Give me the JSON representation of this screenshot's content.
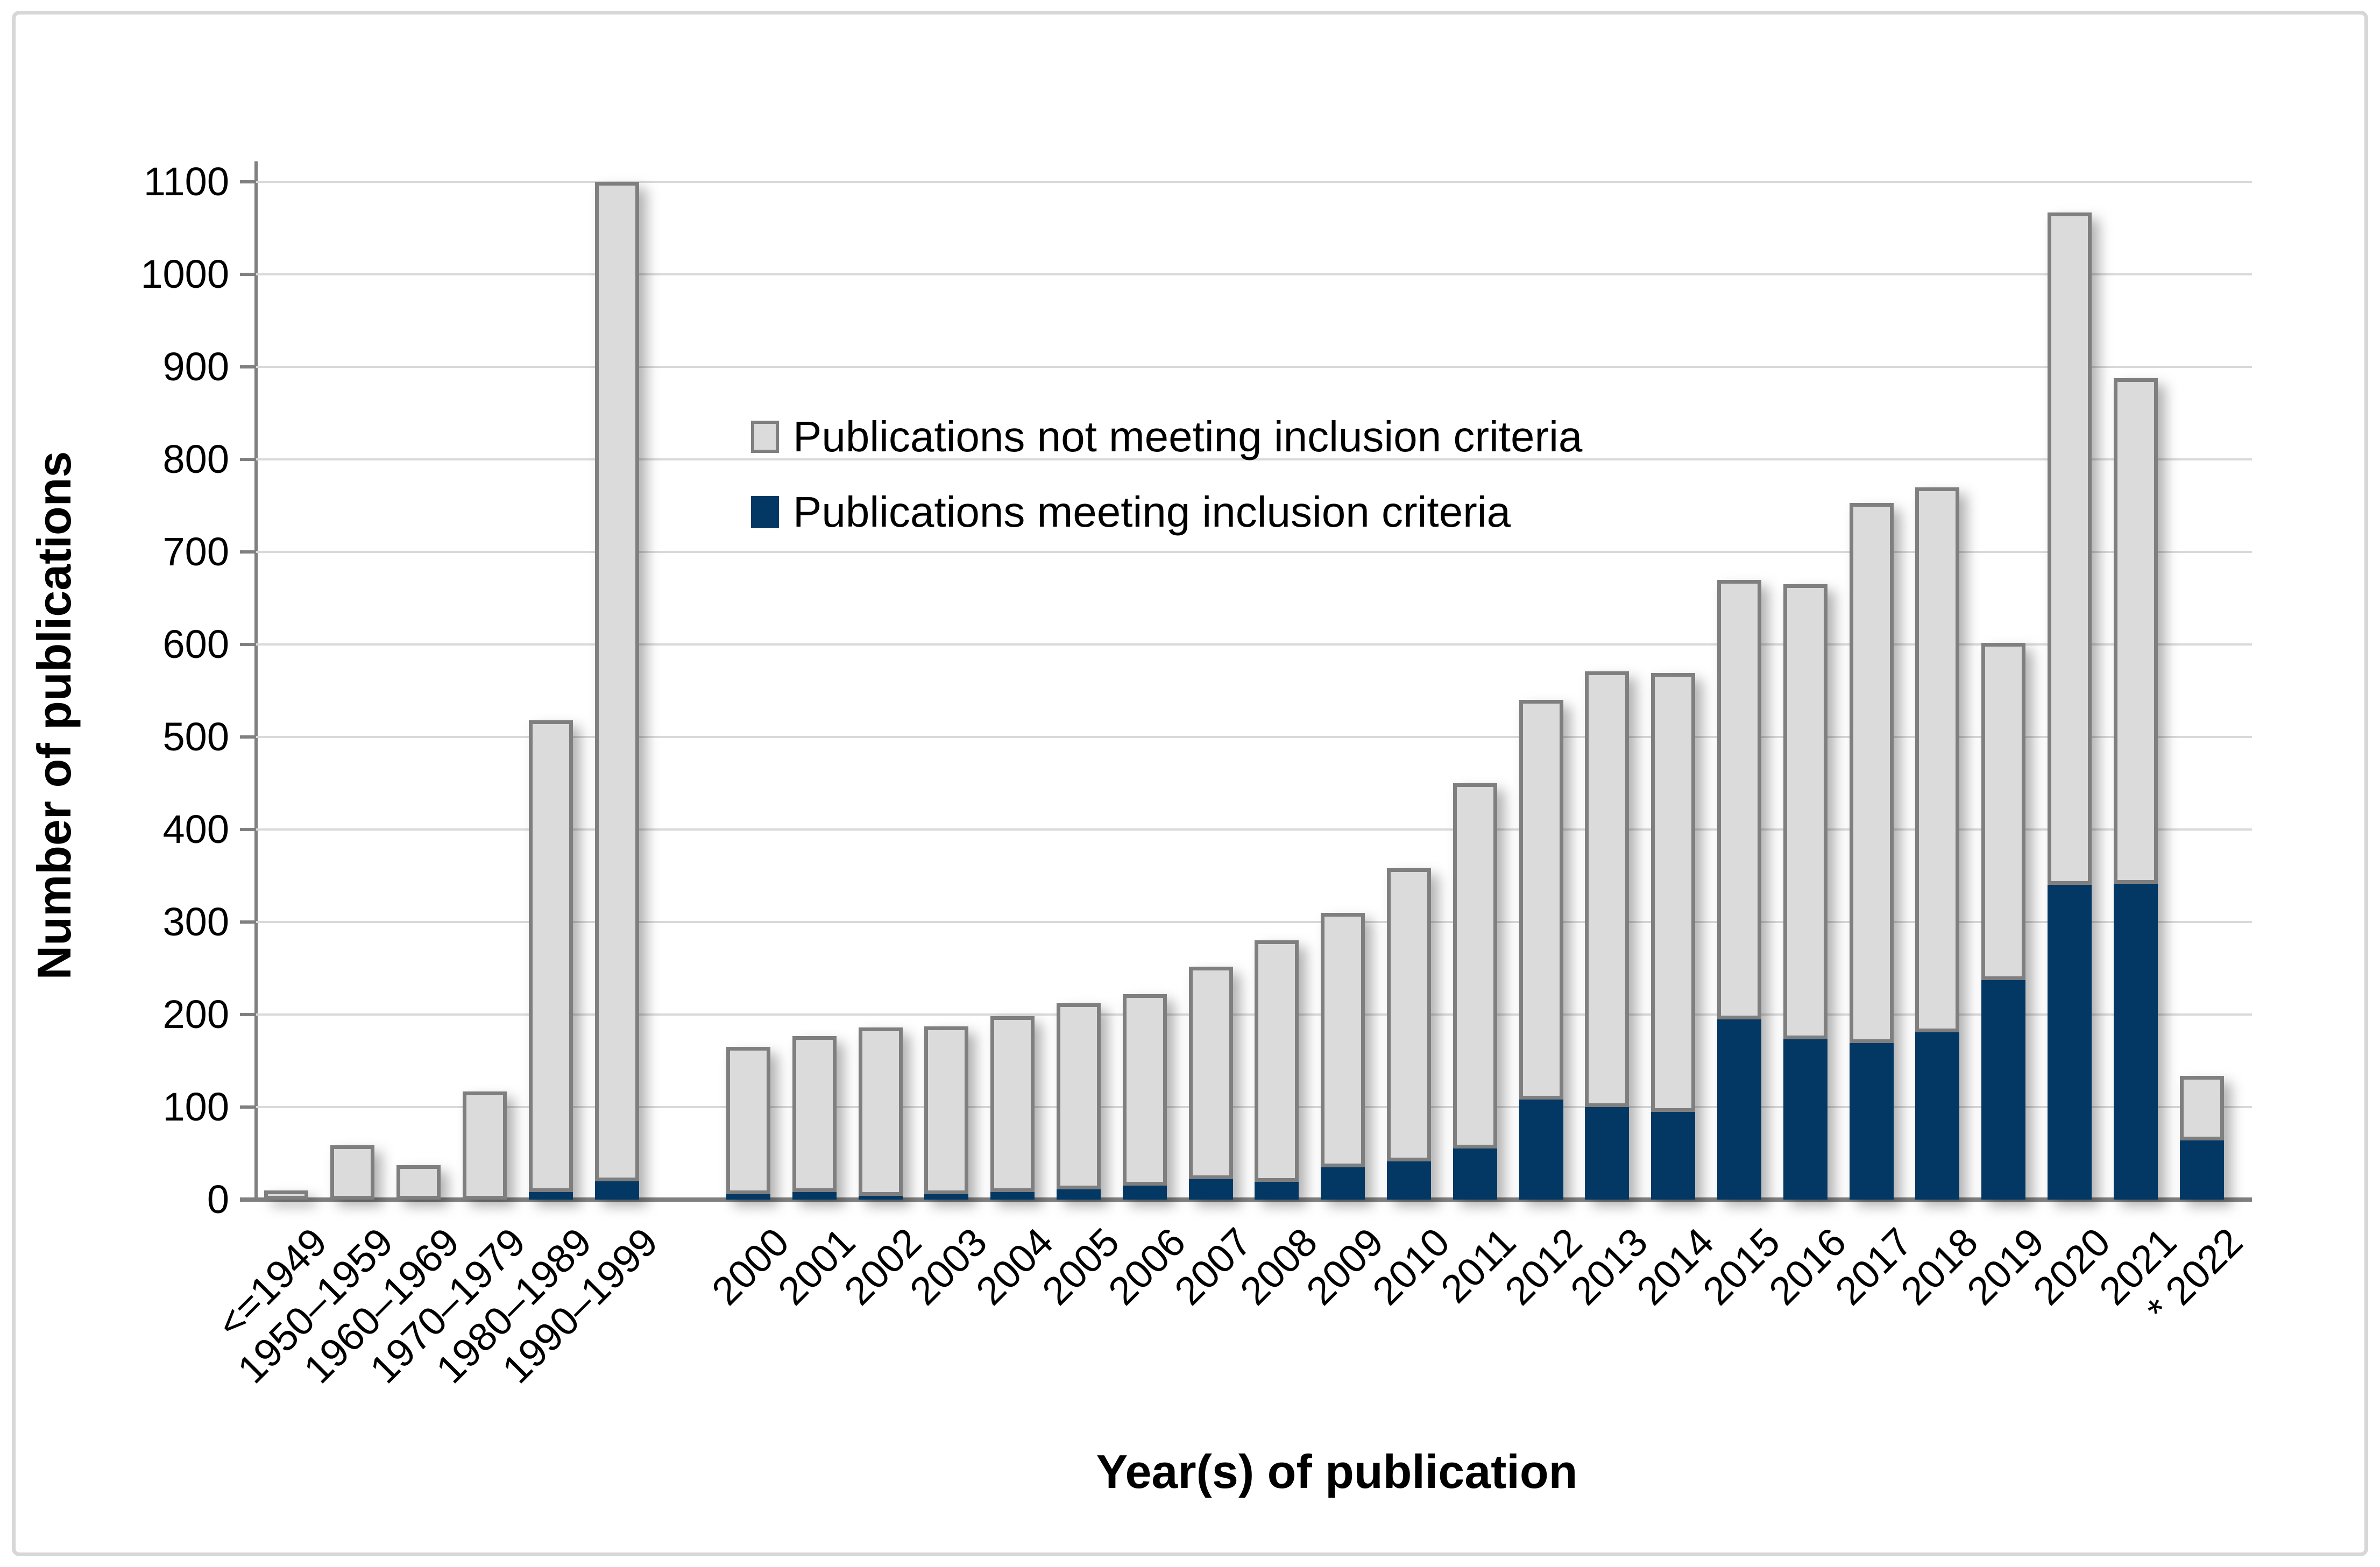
{
  "figure": {
    "background_color": "#FFFFFF",
    "frame_border_color": "#D7D7D7"
  },
  "chart_data": {
    "type": "bar",
    "stacked": true,
    "title": "",
    "xlabel": "Year(s) of publication",
    "ylabel": "Number of publications",
    "ylim": [
      0,
      1100
    ],
    "ytick_step": 100,
    "yticks": [
      0,
      100,
      200,
      300,
      400,
      500,
      600,
      700,
      800,
      900,
      1000,
      1100
    ],
    "grid": true,
    "legend_position": "inside-upper-left",
    "categories": [
      "<=1949",
      "1950–1959",
      "1960–1969",
      "1970–1979",
      "1980–1989",
      "1990–1999",
      "2000",
      "2001",
      "2002",
      "2003",
      "2004",
      "2005",
      "2006",
      "2007",
      "2008",
      "2009",
      "2010",
      "2011",
      "2012",
      "2013",
      "2014",
      "2015",
      "2016",
      "2017",
      "2018",
      "2019",
      "2020",
      "2021",
      "* 2022"
    ],
    "group_break_after_index": 5,
    "series": [
      {
        "name": "Publications not meeting inclusion criteria",
        "stack_position": "top",
        "fill_color": "#DBDBDB",
        "border_color": "#7F7F7F",
        "values": [
          10,
          59,
          37,
          117,
          510,
          1080,
          159,
          169,
          182,
          181,
          190,
          201,
          207,
          230,
          261,
          275,
          317,
          395,
          432,
          471,
          474,
          475,
          492,
          584,
          589,
          365,
          727,
          547,
          70
        ]
      },
      {
        "name": "Publications meeting inclusion criteria",
        "stack_position": "bottom",
        "fill_color": "#033864",
        "border_color": "#033864",
        "values": [
          0,
          0,
          0,
          0,
          8,
          20,
          6,
          8,
          4,
          6,
          8,
          11,
          15,
          22,
          19,
          35,
          41,
          55,
          108,
          100,
          95,
          195,
          173,
          169,
          181,
          237,
          340,
          341,
          64
        ]
      }
    ],
    "stacked_totals": [
      10,
      59,
      37,
      117,
      518,
      1100,
      165,
      177,
      186,
      187,
      198,
      212,
      222,
      252,
      280,
      310,
      358,
      450,
      540,
      571,
      569,
      670,
      665,
      753,
      770,
      602,
      1067,
      888,
      134
    ],
    "axis_color": "#808080",
    "gridline_color": "#D9D9D9",
    "tick_label_color": "#000000"
  },
  "legend": {
    "items": [
      {
        "label": "Publications not meeting inclusion criteria",
        "color": "#DBDBDB"
      },
      {
        "label": "Publications meeting inclusion criteria",
        "color": "#033864"
      }
    ]
  }
}
